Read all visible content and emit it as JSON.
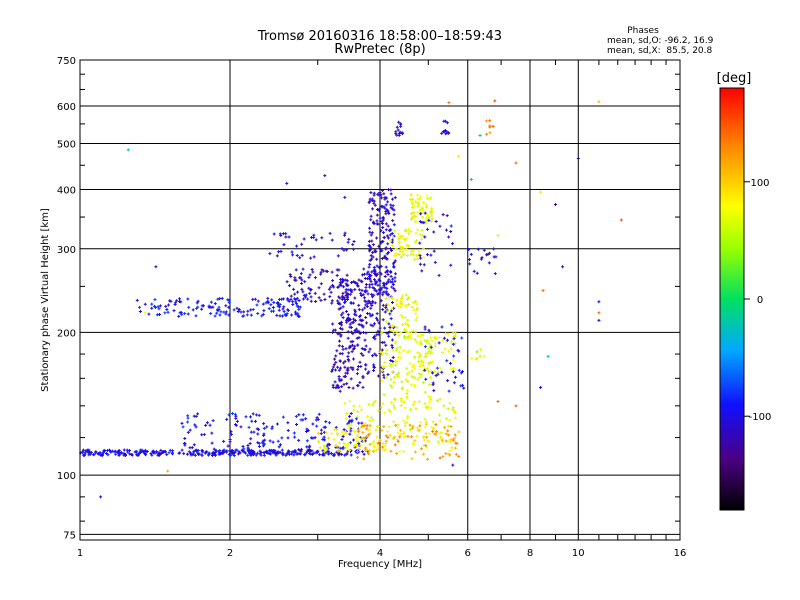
{
  "chart_data": {
    "type": "scatter",
    "title": "Tromsø 20160316 18:58:00–18:59:43",
    "subtitle": "RwPretec (8p)",
    "stats": {
      "heading": "Phases",
      "line1": "mean, sd,O: -96.2, 16.9",
      "line2": "mean, sd,X:  85.5, 20.8"
    },
    "xlabel": "Frequency [MHz]",
    "ylabel": "Stationary phase Virtual Height [km]",
    "x_scale": "log",
    "y_scale": "log",
    "xlim": [
      1,
      16
    ],
    "ylim": [
      73,
      750
    ],
    "x_ticks": [
      1,
      2,
      4,
      6,
      8,
      10,
      16
    ],
    "y_ticks": [
      75,
      100,
      200,
      300,
      400,
      500,
      600,
      750
    ],
    "grid": true,
    "colorbar": {
      "label": "[deg]",
      "range": [
        -180,
        180
      ],
      "ticks": [
        -100,
        0,
        100
      ]
    },
    "clusters": [
      {
        "x0": 1.0,
        "x1": 3.8,
        "y0": 110,
        "y1": 113,
        "n": 340,
        "phase": -100
      },
      {
        "x0": 1.6,
        "x1": 3.8,
        "y0": 113,
        "y1": 135,
        "n": 170,
        "phase": -95
      },
      {
        "x0": 3.0,
        "x1": 4.0,
        "y0": 112,
        "y1": 125,
        "n": 40,
        "phase": 80
      },
      {
        "x0": 3.4,
        "x1": 5.7,
        "y0": 112,
        "y1": 145,
        "n": 150,
        "phase": 75
      },
      {
        "x0": 3.6,
        "x1": 5.8,
        "y0": 108,
        "y1": 128,
        "n": 80,
        "phase": 120
      },
      {
        "x0": 1.3,
        "x1": 2.8,
        "y0": 216,
        "y1": 236,
        "n": 150,
        "phase": -95
      },
      {
        "x0": 2.6,
        "x1": 3.9,
        "y0": 230,
        "y1": 272,
        "n": 110,
        "phase": -110
      },
      {
        "x0": 2.4,
        "x1": 3.6,
        "y0": 285,
        "y1": 325,
        "n": 40,
        "phase": -100
      },
      {
        "x0": 3.2,
        "x1": 3.7,
        "y0": 150,
        "y1": 215,
        "n": 130,
        "phase": -115
      },
      {
        "x0": 3.3,
        "x1": 3.7,
        "y0": 210,
        "y1": 260,
        "n": 60,
        "phase": -110
      },
      {
        "x0": 3.8,
        "x1": 4.3,
        "y0": 240,
        "y1": 400,
        "n": 200,
        "phase": -110
      },
      {
        "x0": 3.7,
        "x1": 4.3,
        "y0": 160,
        "y1": 260,
        "n": 120,
        "phase": -110
      },
      {
        "x0": 4.0,
        "x1": 5.1,
        "y0": 140,
        "y1": 200,
        "n": 120,
        "phase": 70
      },
      {
        "x0": 4.1,
        "x1": 4.8,
        "y0": 200,
        "y1": 240,
        "n": 60,
        "phase": 75
      },
      {
        "x0": 4.2,
        "x1": 4.9,
        "y0": 285,
        "y1": 330,
        "n": 60,
        "phase": 75
      },
      {
        "x0": 4.6,
        "x1": 5.1,
        "y0": 340,
        "y1": 390,
        "n": 60,
        "phase": 75
      },
      {
        "x0": 4.6,
        "x1": 5.7,
        "y0": 160,
        "y1": 200,
        "n": 70,
        "phase": 75
      },
      {
        "x0": 4.9,
        "x1": 5.9,
        "y0": 150,
        "y1": 210,
        "n": 40,
        "phase": -95
      },
      {
        "x0": 4.8,
        "x1": 5.6,
        "y0": 260,
        "y1": 360,
        "n": 30,
        "phase": -105
      },
      {
        "x0": 4.3,
        "x1": 4.5,
        "y0": 520,
        "y1": 560,
        "n": 14,
        "phase": -110
      },
      {
        "x0": 5.3,
        "x1": 5.5,
        "y0": 520,
        "y1": 560,
        "n": 12,
        "phase": -110
      },
      {
        "x0": 6.0,
        "x1": 6.9,
        "y0": 265,
        "y1": 300,
        "n": 18,
        "phase": -105
      },
      {
        "x0": 6.5,
        "x1": 6.8,
        "y0": 520,
        "y1": 560,
        "n": 8,
        "phase": 125
      },
      {
        "x0": 6.0,
        "x1": 6.5,
        "y0": 175,
        "y1": 200,
        "n": 8,
        "phase": 60
      }
    ],
    "isolated_points": [
      {
        "x": 1.25,
        "y": 485,
        "phase": -20
      },
      {
        "x": 1.1,
        "y": 90,
        "phase": -100
      },
      {
        "x": 1.35,
        "y": 220,
        "phase": 80
      },
      {
        "x": 1.42,
        "y": 275,
        "phase": -110
      },
      {
        "x": 2.6,
        "y": 412,
        "phase": -95
      },
      {
        "x": 3.1,
        "y": 428,
        "phase": -100
      },
      {
        "x": 5.5,
        "y": 610,
        "phase": 135
      },
      {
        "x": 6.8,
        "y": 615,
        "phase": 150
      },
      {
        "x": 6.35,
        "y": 520,
        "phase": -20
      },
      {
        "x": 5.75,
        "y": 470,
        "phase": 60
      },
      {
        "x": 6.1,
        "y": 420,
        "phase": -30
      },
      {
        "x": 7.5,
        "y": 455,
        "phase": 140
      },
      {
        "x": 10.0,
        "y": 465,
        "phase": -110
      },
      {
        "x": 9.0,
        "y": 372,
        "phase": -120
      },
      {
        "x": 12.2,
        "y": 345,
        "phase": 150
      },
      {
        "x": 6.9,
        "y": 320,
        "phase": 60
      },
      {
        "x": 8.5,
        "y": 245,
        "phase": 140
      },
      {
        "x": 9.3,
        "y": 275,
        "phase": -105
      },
      {
        "x": 11.0,
        "y": 232,
        "phase": -110
      },
      {
        "x": 11.0,
        "y": 220,
        "phase": 140
      },
      {
        "x": 11.0,
        "y": 212,
        "phase": -100
      },
      {
        "x": 8.7,
        "y": 178,
        "phase": -20
      },
      {
        "x": 8.4,
        "y": 153,
        "phase": -95
      },
      {
        "x": 6.9,
        "y": 143,
        "phase": 140
      },
      {
        "x": 7.5,
        "y": 140,
        "phase": 145
      },
      {
        "x": 5.6,
        "y": 105,
        "phase": -110
      },
      {
        "x": 3.4,
        "y": 385,
        "phase": -100
      },
      {
        "x": 11.0,
        "y": 612,
        "phase": 110
      },
      {
        "x": 8.4,
        "y": 395,
        "phase": 90
      },
      {
        "x": 1.5,
        "y": 102,
        "phase": 120
      }
    ],
    "points": []
  }
}
